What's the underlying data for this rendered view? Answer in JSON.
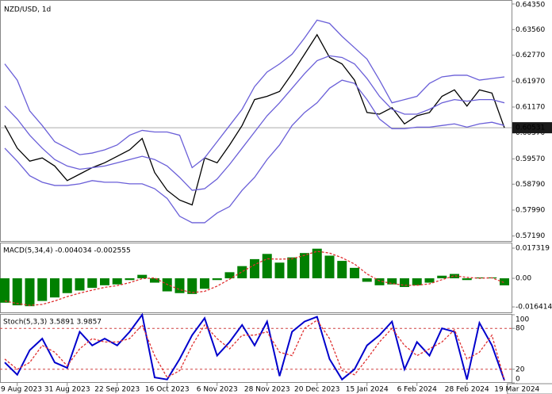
{
  "chart_data": [
    {
      "type": "line",
      "title": "NZD/USD, 1d",
      "categories": [
        null,
        "9 Aug 2023",
        null,
        null,
        null,
        "31 Aug 2023",
        null,
        null,
        null,
        "22 Sep 2023",
        null,
        null,
        null,
        "16 Oct 2023",
        null,
        null,
        null,
        "6 Nov 2023",
        null,
        null,
        null,
        "28 Nov 2023",
        null,
        null,
        null,
        "20 Dec 2023",
        null,
        null,
        null,
        "15 Jan 2024",
        null,
        null,
        null,
        "6 Feb 2024",
        null,
        null,
        null,
        "28 Feb 2024",
        null,
        null,
        null,
        "19 Mar 2024"
      ],
      "series": [
        {
          "color": "#000000",
          "values": [
            0.606,
            0.599,
            0.595,
            0.596,
            0.5935,
            0.589,
            0.591,
            0.593,
            0.5945,
            0.5965,
            0.5985,
            0.602,
            0.5915,
            0.586,
            0.583,
            0.5815,
            0.596,
            0.5945,
            0.6,
            0.606,
            0.614,
            0.615,
            0.6165,
            0.622,
            0.628,
            0.634,
            0.627,
            0.625,
            0.62,
            0.61,
            0.6095,
            0.6115,
            0.6065,
            0.609,
            0.61,
            0.615,
            0.617,
            0.612,
            0.617,
            0.616,
            0.60531,
            null
          ]
        },
        {
          "color": "#6a5fd8",
          "values": [
            0.625,
            0.62,
            0.6105,
            0.606,
            0.601,
            0.599,
            0.597,
            0.5975,
            0.5985,
            0.6,
            0.603,
            0.6045,
            0.604,
            0.604,
            0.603,
            0.593,
            0.596,
            0.601,
            0.606,
            0.611,
            0.618,
            0.6225,
            0.625,
            0.628,
            0.633,
            0.6385,
            0.6375,
            0.6335,
            0.63,
            0.6265,
            0.62,
            0.613,
            0.614,
            0.615,
            0.619,
            0.621,
            0.6215,
            0.6215,
            0.62,
            0.6205,
            0.621,
            null
          ]
        },
        {
          "color": "#6a5fd8",
          "values": [
            0.612,
            0.608,
            0.603,
            0.599,
            0.5955,
            0.5935,
            0.5925,
            0.593,
            0.5935,
            0.5945,
            0.5955,
            0.5965,
            0.5955,
            0.5935,
            0.59,
            0.586,
            0.5865,
            0.5895,
            0.594,
            0.599,
            0.604,
            0.609,
            0.613,
            0.6175,
            0.622,
            0.626,
            0.6275,
            0.627,
            0.625,
            0.6205,
            0.615,
            0.611,
            0.6095,
            0.6095,
            0.611,
            0.613,
            0.614,
            0.6135,
            0.614,
            0.614,
            0.613,
            null
          ]
        },
        {
          "color": "#6a5fd8",
          "values": [
            0.599,
            0.595,
            0.5905,
            0.5885,
            0.5875,
            0.5875,
            0.588,
            0.589,
            0.5885,
            0.5885,
            0.588,
            0.588,
            0.5865,
            0.5835,
            0.578,
            0.576,
            0.576,
            0.579,
            0.581,
            0.586,
            0.59,
            0.5955,
            0.6,
            0.606,
            0.61,
            0.613,
            0.6175,
            0.62,
            0.619,
            0.614,
            0.608,
            0.605,
            0.605,
            0.6055,
            0.6055,
            0.606,
            0.6065,
            0.6055,
            0.6065,
            0.607,
            0.606,
            null
          ]
        }
      ],
      "current_price": 0.60531,
      "ylim": [
        0.57012,
        0.64472
      ],
      "yticks": [
        {
          "value": 0.6435,
          "label": "0.64350"
        },
        {
          "value": 0.6356,
          "label": "0.63560"
        },
        {
          "value": 0.6277,
          "label": "0.62770"
        },
        {
          "value": 0.6197,
          "label": "0.61970"
        },
        {
          "value": 0.6117,
          "label": "0.61170"
        },
        {
          "value": 0.6037,
          "label": "0.60370"
        },
        {
          "value": 0.5957,
          "label": "0.59570"
        },
        {
          "value": 0.5879,
          "label": "0.58790"
        },
        {
          "value": 0.5799,
          "label": "0.57990"
        },
        {
          "value": 0.5719,
          "label": "0.57190"
        }
      ]
    },
    {
      "type": "bar",
      "title": "MACD(5,34,4) -0.004034 -0.002555",
      "series": [
        {
          "color": "#008000",
          "values": [
            -0.014,
            -0.0155,
            -0.016,
            -0.013,
            -0.011,
            -0.0085,
            -0.007,
            -0.0055,
            -0.004,
            -0.0035,
            -0.001,
            0.002,
            -0.0025,
            -0.0075,
            -0.0085,
            -0.009,
            -0.006,
            -0.001,
            0.0035,
            0.007,
            0.011,
            0.014,
            0.009,
            0.012,
            0.0145,
            0.017,
            0.013,
            0.01,
            0.006,
            -0.002,
            -0.004,
            -0.0035,
            -0.005,
            -0.004,
            -0.0025,
            0.0015,
            0.0025,
            -0.001,
            0.0005,
            0.0005,
            -0.004034,
            null
          ]
        },
        {
          "color": "#e03030",
          "values": [
            -0.013,
            -0.0145,
            -0.0155,
            -0.015,
            -0.013,
            -0.0105,
            -0.0085,
            -0.0068,
            -0.0052,
            -0.0042,
            -0.0025,
            -0.0002,
            0.0002,
            -0.0035,
            -0.0065,
            -0.0082,
            -0.0075,
            -0.0045,
            -0.0005,
            0.0038,
            0.0078,
            0.0112,
            0.011,
            0.0112,
            0.0132,
            0.0155,
            0.0145,
            0.0118,
            0.0082,
            0.0025,
            -0.0015,
            -0.003,
            -0.004,
            -0.004,
            -0.0032,
            -0.0008,
            0.0015,
            0.0005,
            0.0,
            0.0003,
            -0.002555,
            null
          ]
        }
      ],
      "ylim": [
        -0.02,
        0.02005
      ],
      "yticks": [
        0.017319,
        {
          "value": 0,
          "label": "0.00"
        },
        -0.016414
      ]
    },
    {
      "type": "line",
      "title": "Stoch(5,3,3) 3.5891 3.9857",
      "series": [
        {
          "color": "#0000cc",
          "values": [
            30,
            12,
            48,
            65,
            30,
            22,
            75,
            55,
            65,
            55,
            75,
            100,
            8,
            5,
            35,
            70,
            95,
            40,
            60,
            85,
            55,
            90,
            10,
            75,
            90,
            97,
            35,
            5,
            20,
            55,
            70,
            90,
            20,
            60,
            40,
            80,
            75,
            5,
            88,
            55,
            3.5891,
            null
          ]
        },
        {
          "color": "#e03030",
          "dashed": true,
          "values": [
            35,
            20,
            30,
            55,
            45,
            25,
            50,
            65,
            60,
            60,
            65,
            85,
            40,
            8,
            18,
            55,
            85,
            65,
            50,
            70,
            70,
            75,
            45,
            40,
            80,
            92,
            65,
            18,
            12,
            35,
            60,
            80,
            55,
            40,
            50,
            60,
            78,
            35,
            45,
            70,
            3.9857,
            null
          ]
        }
      ],
      "levels": [
        80,
        20
      ],
      "ylim": [
        0,
        100
      ],
      "yticks": [
        100,
        80,
        20,
        0
      ]
    }
  ]
}
